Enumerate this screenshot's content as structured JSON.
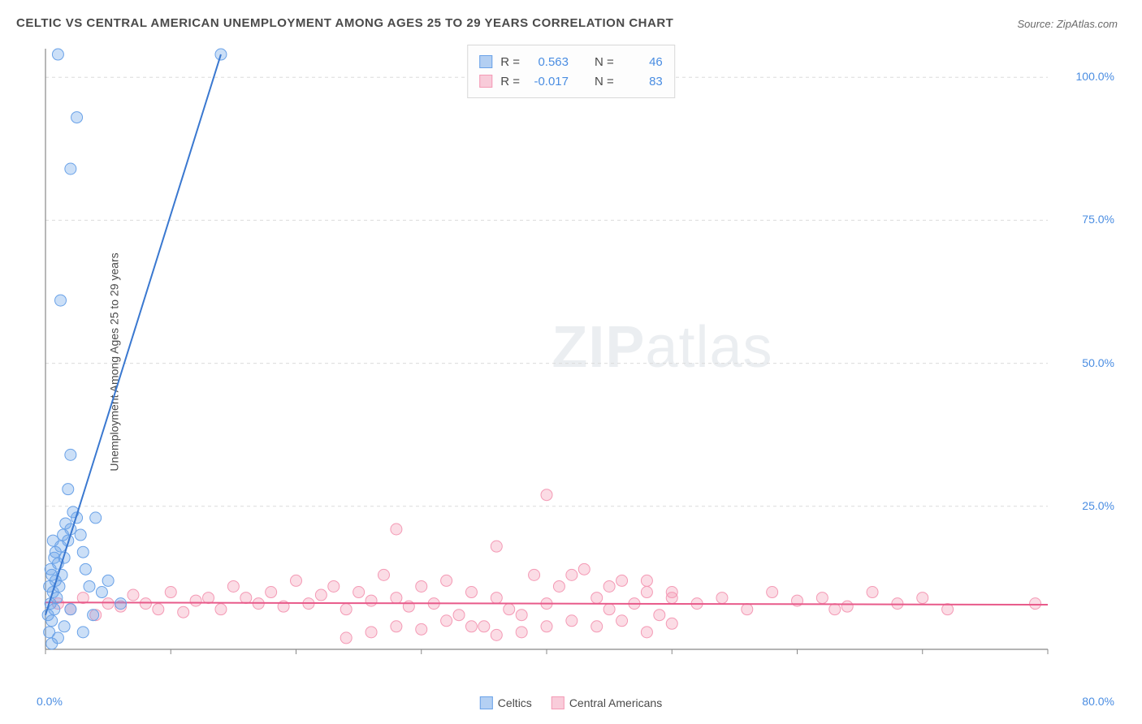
{
  "title": "CELTIC VS CENTRAL AMERICAN UNEMPLOYMENT AMONG AGES 25 TO 29 YEARS CORRELATION CHART",
  "source_label": "Source: ZipAtlas.com",
  "y_axis_label": "Unemployment Among Ages 25 to 29 years",
  "watermark": {
    "bold": "ZIP",
    "light": "atlas"
  },
  "chart": {
    "type": "scatter",
    "background_color": "#ffffff",
    "grid_color": "#dcdcdc",
    "axis_color": "#888888",
    "xlim": [
      0,
      80
    ],
    "ylim": [
      0,
      105
    ],
    "x_ticks": [
      0,
      10,
      20,
      30,
      40,
      50,
      60,
      70,
      80
    ],
    "y_ticks": [
      25,
      50,
      75,
      100
    ],
    "x_tick_labels": {
      "min": "0.0%",
      "max": "80.0%"
    },
    "y_tick_labels": [
      "25.0%",
      "50.0%",
      "75.0%",
      "100.0%"
    ],
    "marker_radius": 7,
    "marker_fill_opacity": 0.35,
    "line_width": 2,
    "series": [
      {
        "name": "Celtics",
        "color": "#6aa2e8",
        "line_color": "#3a78d0",
        "stats": {
          "R": "0.563",
          "N": "46"
        },
        "trend": {
          "x1": 0,
          "y1": 6,
          "x2": 14,
          "y2": 104
        },
        "points": [
          [
            0.2,
            6
          ],
          [
            0.3,
            3
          ],
          [
            0.4,
            8
          ],
          [
            0.5,
            5
          ],
          [
            0.6,
            10
          ],
          [
            0.7,
            7
          ],
          [
            0.8,
            12
          ],
          [
            0.9,
            9
          ],
          [
            1.0,
            15
          ],
          [
            1.1,
            11
          ],
          [
            1.2,
            18
          ],
          [
            1.3,
            13
          ],
          [
            1.4,
            20
          ],
          [
            1.5,
            16
          ],
          [
            1.6,
            22
          ],
          [
            1.8,
            19
          ],
          [
            2.0,
            21
          ],
          [
            2.2,
            24
          ],
          [
            2.5,
            23
          ],
          [
            2.8,
            20
          ],
          [
            3.0,
            17
          ],
          [
            3.2,
            14
          ],
          [
            3.5,
            11
          ],
          [
            1.0,
            2
          ],
          [
            1.5,
            4
          ],
          [
            2.0,
            7
          ],
          [
            0.5,
            1
          ],
          [
            3.0,
            3
          ],
          [
            3.8,
            6
          ],
          [
            5.0,
            12
          ],
          [
            6.0,
            8
          ],
          [
            2.5,
            93
          ],
          [
            1.0,
            104
          ],
          [
            2.0,
            84
          ],
          [
            1.2,
            61
          ],
          [
            4.0,
            23
          ],
          [
            2.0,
            34
          ],
          [
            1.8,
            28
          ],
          [
            0.8,
            17
          ],
          [
            0.6,
            19
          ],
          [
            0.4,
            14
          ],
          [
            0.3,
            11
          ],
          [
            0.5,
            13
          ],
          [
            0.7,
            16
          ],
          [
            14.0,
            104
          ],
          [
            4.5,
            10
          ]
        ]
      },
      {
        "name": "Central Americans",
        "color": "#f49ab5",
        "line_color": "#e85a8a",
        "stats": {
          "R": "-0.017",
          "N": "83"
        },
        "trend": {
          "x1": 0,
          "y1": 8.2,
          "x2": 80,
          "y2": 7.8
        },
        "points": [
          [
            1,
            8
          ],
          [
            2,
            7
          ],
          [
            3,
            9
          ],
          [
            4,
            6
          ],
          [
            5,
            8
          ],
          [
            6,
            7.5
          ],
          [
            7,
            9.5
          ],
          [
            8,
            8
          ],
          [
            9,
            7
          ],
          [
            10,
            10
          ],
          [
            11,
            6.5
          ],
          [
            12,
            8.5
          ],
          [
            13,
            9
          ],
          [
            14,
            7
          ],
          [
            15,
            11
          ],
          [
            16,
            9
          ],
          [
            17,
            8
          ],
          [
            18,
            10
          ],
          [
            19,
            7.5
          ],
          [
            20,
            12
          ],
          [
            21,
            8
          ],
          [
            22,
            9.5
          ],
          [
            23,
            11
          ],
          [
            24,
            7
          ],
          [
            25,
            10
          ],
          [
            26,
            8.5
          ],
          [
            27,
            13
          ],
          [
            28,
            9
          ],
          [
            29,
            7.5
          ],
          [
            30,
            11
          ],
          [
            31,
            8
          ],
          [
            32,
            12
          ],
          [
            33,
            6
          ],
          [
            34,
            10
          ],
          [
            35,
            4
          ],
          [
            36,
            9
          ],
          [
            37,
            7
          ],
          [
            38,
            3
          ],
          [
            39,
            13
          ],
          [
            40,
            8
          ],
          [
            41,
            11
          ],
          [
            42,
            5
          ],
          [
            43,
            14
          ],
          [
            44,
            9
          ],
          [
            45,
            7
          ],
          [
            46,
            12
          ],
          [
            47,
            8
          ],
          [
            48,
            10
          ],
          [
            49,
            6
          ],
          [
            50,
            9
          ],
          [
            28,
            21
          ],
          [
            36,
            18
          ],
          [
            40,
            27
          ],
          [
            42,
            13
          ],
          [
            45,
            11
          ],
          [
            48,
            12
          ],
          [
            50,
            10
          ],
          [
            52,
            8
          ],
          [
            54,
            9
          ],
          [
            56,
            7
          ],
          [
            58,
            10
          ],
          [
            60,
            8.5
          ],
          [
            62,
            9
          ],
          [
            64,
            7.5
          ],
          [
            66,
            10
          ],
          [
            68,
            8
          ],
          [
            70,
            9
          ],
          [
            72,
            7
          ],
          [
            79,
            8
          ],
          [
            63,
            7
          ],
          [
            28,
            4
          ],
          [
            30,
            3.5
          ],
          [
            32,
            5
          ],
          [
            34,
            4
          ],
          [
            36,
            2.5
          ],
          [
            38,
            6
          ],
          [
            40,
            4
          ],
          [
            24,
            2
          ],
          [
            26,
            3
          ],
          [
            44,
            4
          ],
          [
            46,
            5
          ],
          [
            48,
            3
          ],
          [
            50,
            4.5
          ]
        ]
      }
    ]
  },
  "legend": {
    "series1_label": "Celtics",
    "series2_label": "Central Americans",
    "r_label": "R =",
    "n_label": "N ="
  }
}
